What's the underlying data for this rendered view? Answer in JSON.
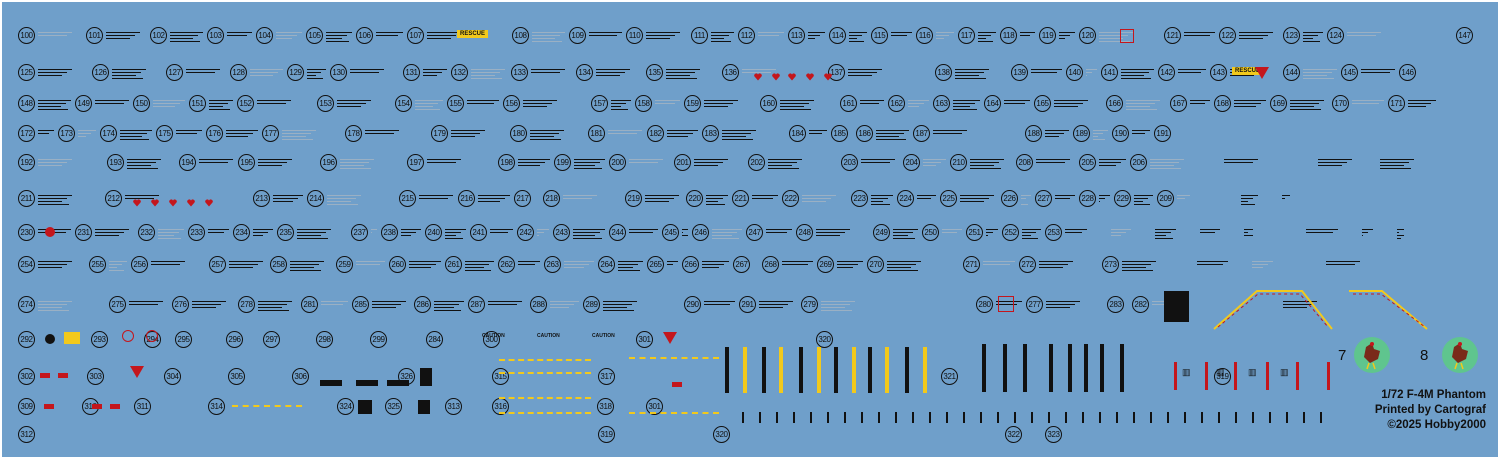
{
  "sheet": {
    "rows": [
      [
        "100",
        "101",
        "102",
        "103",
        "104",
        "105",
        "106",
        "107",
        "108",
        "109",
        "110",
        "111",
        "112",
        "113",
        "114",
        "115",
        "116",
        "117",
        "118",
        "119",
        "120",
        "121",
        "122",
        "123",
        "124",
        "147"
      ],
      [
        "125",
        "126",
        "127",
        "128",
        "129",
        "130",
        "131",
        "132",
        "133",
        "134",
        "135",
        "136",
        "137",
        "138",
        "139",
        "140",
        "141",
        "142",
        "143",
        "144",
        "145",
        "146"
      ],
      [
        "148",
        "149",
        "150",
        "151",
        "152",
        "153",
        "154",
        "155",
        "156",
        "157",
        "158",
        "159",
        "160",
        "161",
        "162",
        "163",
        "164",
        "165",
        "166",
        "167",
        "168",
        "169",
        "170",
        "171"
      ],
      [
        "172",
        "173",
        "174",
        "175",
        "176",
        "177",
        "178",
        "179",
        "180",
        "181",
        "182",
        "183",
        "184",
        "185",
        "186",
        "187",
        "188",
        "189",
        "190",
        "191"
      ],
      [
        "192",
        "193",
        "194",
        "195",
        "196",
        "197",
        "198",
        "199",
        "200",
        "201",
        "202",
        "203",
        "204",
        "210",
        "208",
        "205",
        "206"
      ],
      [
        "211",
        "212",
        "213",
        "214",
        "215",
        "216",
        "217",
        "218",
        "219",
        "220",
        "221",
        "222",
        "223",
        "224",
        "225",
        "226",
        "227",
        "228",
        "229",
        "209"
      ],
      [
        "230",
        "231",
        "232",
        "233",
        "234",
        "235",
        "237",
        "238",
        "240",
        "241",
        "242",
        "243",
        "244",
        "245",
        "246",
        "247",
        "248",
        "249",
        "250",
        "251",
        "252",
        "253"
      ],
      [
        "254",
        "255",
        "256",
        "257",
        "258",
        "259",
        "260",
        "261",
        "262",
        "263",
        "264",
        "265",
        "266",
        "267",
        "268",
        "269",
        "270",
        "271",
        "272",
        "273"
      ],
      [
        "274",
        "275",
        "276",
        "278",
        "281",
        "285",
        "286",
        "287",
        "288",
        "289",
        "290",
        "291",
        "279",
        "280",
        "277",
        "283",
        "282"
      ],
      [
        "292",
        "293",
        "294",
        "295",
        "296",
        "297",
        "298",
        "299",
        "284",
        "300",
        "301",
        "320"
      ],
      [
        "302",
        "303",
        "304",
        "305",
        "306",
        "326",
        "315",
        "317",
        "321",
        "319"
      ],
      [
        "309",
        "310",
        "311",
        "314",
        "324",
        "325",
        "313",
        "316",
        "318",
        "301"
      ],
      [
        "312",
        "319",
        "320",
        "322",
        "323"
      ]
    ],
    "plain_numbers": [
      "7",
      "8"
    ],
    "rescue_label": "RESCUE",
    "caution_label": "CAUTION",
    "watermark": {
      "line1": "1/72 F-4M Phantom",
      "line2": "Printed by Cartograf",
      "line3": "©2025 Hobby2000"
    },
    "colors": {
      "background": "#6f9fca",
      "stencil_black": "#111111",
      "stencil_red": "#c4161c",
      "stencil_yellow": "#f2c91c",
      "roundel_green": "#5fc58e"
    }
  }
}
